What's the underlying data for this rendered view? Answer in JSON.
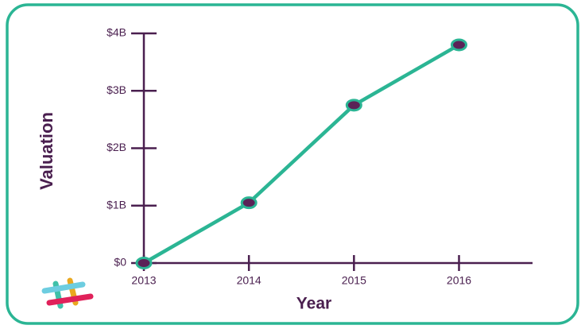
{
  "chart_data": {
    "type": "line",
    "x_label": "Year",
    "y_label": "Valuation",
    "x": [
      2013,
      2014,
      2015,
      2016
    ],
    "series": [
      {
        "color": "#2bb594",
        "values": [
          0,
          1.05,
          2.75,
          3.8
        ]
      }
    ],
    "xlim": [
      2013,
      2016.7
    ],
    "xticks": [
      2013,
      2014,
      2015,
      2016
    ],
    "ylim": [
      0,
      4
    ],
    "yticks": [
      {
        "value": 0,
        "label": "$0"
      },
      {
        "value": 1,
        "label": "$1B"
      },
      {
        "value": 2,
        "label": "$2B"
      },
      {
        "value": 3,
        "label": "$3B"
      },
      {
        "value": 4,
        "label": "$4B"
      }
    ],
    "axis_color": "#4a1f4f",
    "marker_color": "#5b2357"
  }
}
